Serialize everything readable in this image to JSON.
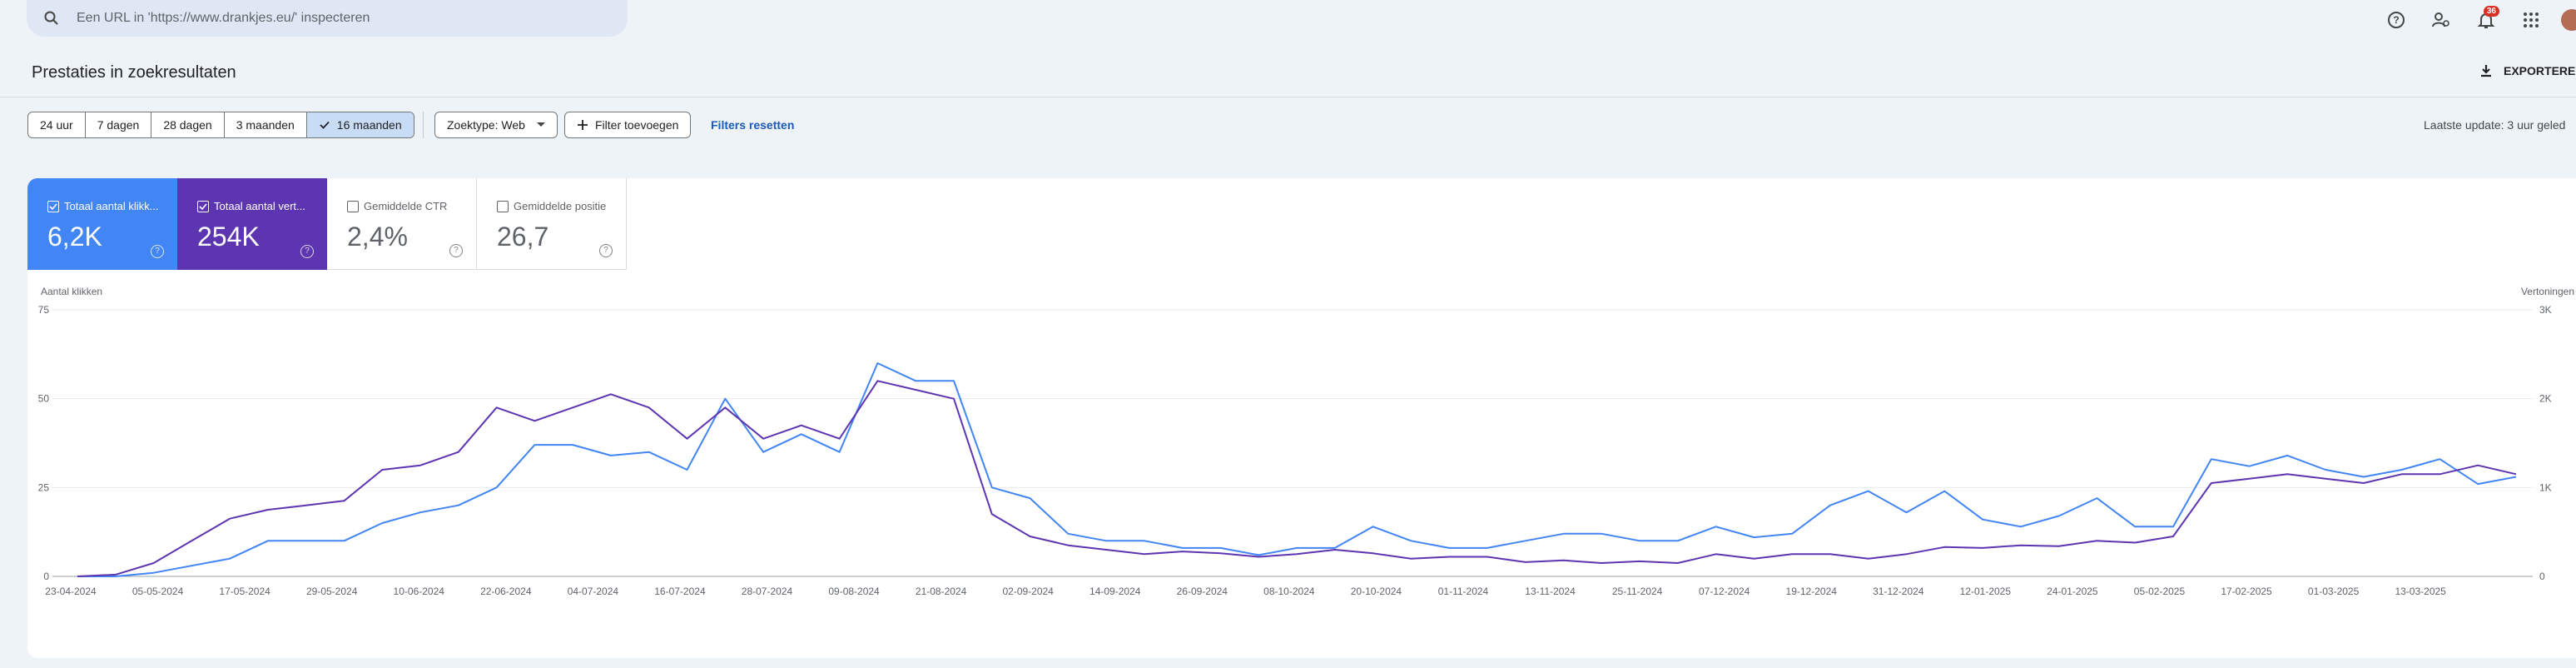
{
  "search": {
    "placeholder": "Een URL in 'https://www.drankjes.eu/' inspecteren"
  },
  "topbar": {
    "notifications_count": "36"
  },
  "page": {
    "title": "Prestaties in zoekresultaten",
    "export_label": "EXPORTEREN"
  },
  "filters": {
    "ranges": [
      "24 uur",
      "7 dagen",
      "28 dagen",
      "3 maanden",
      "16 maanden"
    ],
    "active_range": "16 maanden",
    "search_type": "Zoektype: Web",
    "add_filter": "Filter toevoegen",
    "reset": "Filters resetten",
    "last_update": "Laatste update: 3 uur geled"
  },
  "metrics": {
    "clicks": {
      "label": "Totaal aantal klikk...",
      "value": "6,2K"
    },
    "impressions": {
      "label": "Totaal aantal vert...",
      "value": "254K"
    },
    "ctr": {
      "label": "Gemiddelde CTR",
      "value": "2,4%"
    },
    "position": {
      "label": "Gemiddelde positie",
      "value": "26,7"
    }
  },
  "colors": {
    "clicks": "#4285f4",
    "impressions": "#5e35b1",
    "accent": "#1a5bbd"
  },
  "chart_data": {
    "type": "line",
    "ylabel": "Aantal klikken",
    "y2label": "Vertoningen",
    "ylim": [
      0,
      75
    ],
    "y2lim": [
      0,
      3000
    ],
    "yticks": [
      "0",
      "25",
      "50",
      "75"
    ],
    "y2ticks": [
      "0",
      "1K",
      "2K",
      "3K"
    ],
    "grid": true,
    "xticks": [
      "23-04-2024",
      "05-05-2024",
      "17-05-2024",
      "29-05-2024",
      "10-06-2024",
      "22-06-2024",
      "04-07-2024",
      "16-07-2024",
      "28-07-2024",
      "09-08-2024",
      "21-08-2024",
      "02-09-2024",
      "14-09-2024",
      "26-09-2024",
      "08-10-2024",
      "20-10-2024",
      "01-11-2024",
      "13-11-2024",
      "25-11-2024",
      "07-12-2024",
      "19-12-2024",
      "31-12-2024",
      "12-01-2025",
      "24-01-2025",
      "05-02-2025",
      "17-02-2025",
      "01-03-2025",
      "13-03-2025"
    ],
    "series": [
      {
        "name": "Totaal aantal klikken",
        "axis": "left",
        "color": "#4285f4",
        "points": [
          [
            0,
            0
          ],
          [
            1,
            0
          ],
          [
            2,
            1
          ],
          [
            3,
            3
          ],
          [
            4,
            5
          ],
          [
            5,
            10
          ],
          [
            6,
            10
          ],
          [
            7,
            10
          ],
          [
            8,
            15
          ],
          [
            9,
            18
          ],
          [
            10,
            20
          ],
          [
            11,
            25
          ],
          [
            12,
            37
          ],
          [
            13,
            37
          ],
          [
            14,
            34
          ],
          [
            15,
            35
          ],
          [
            16,
            30
          ],
          [
            17,
            50
          ],
          [
            18,
            35
          ],
          [
            19,
            40
          ],
          [
            20,
            35
          ],
          [
            21,
            60
          ],
          [
            22,
            55
          ],
          [
            23,
            55
          ],
          [
            24,
            25
          ],
          [
            25,
            22
          ],
          [
            26,
            12
          ],
          [
            27,
            10
          ],
          [
            28,
            10
          ],
          [
            29,
            8
          ],
          [
            30,
            8
          ],
          [
            31,
            6
          ],
          [
            32,
            8
          ],
          [
            33,
            8
          ],
          [
            34,
            14
          ],
          [
            35,
            10
          ],
          [
            36,
            8
          ],
          [
            37,
            8
          ],
          [
            38,
            10
          ],
          [
            39,
            12
          ],
          [
            40,
            12
          ],
          [
            41,
            10
          ],
          [
            42,
            10
          ],
          [
            43,
            14
          ],
          [
            44,
            11
          ],
          [
            45,
            12
          ],
          [
            46,
            20
          ],
          [
            47,
            24
          ],
          [
            48,
            18
          ],
          [
            49,
            24
          ],
          [
            50,
            16
          ],
          [
            51,
            14
          ],
          [
            52,
            17
          ],
          [
            53,
            22
          ],
          [
            54,
            14
          ],
          [
            55,
            14
          ],
          [
            56,
            33
          ],
          [
            57,
            31
          ],
          [
            58,
            34
          ],
          [
            59,
            30
          ],
          [
            60,
            28
          ],
          [
            61,
            30
          ],
          [
            62,
            33
          ],
          [
            63,
            26
          ],
          [
            64,
            28
          ]
        ]
      },
      {
        "name": "Totaal aantal vertoningen",
        "axis": "right",
        "color": "#5e35b1",
        "points": [
          [
            0,
            0
          ],
          [
            1,
            20
          ],
          [
            2,
            150
          ],
          [
            3,
            400
          ],
          [
            4,
            650
          ],
          [
            5,
            750
          ],
          [
            6,
            800
          ],
          [
            7,
            850
          ],
          [
            8,
            1200
          ],
          [
            9,
            1250
          ],
          [
            10,
            1400
          ],
          [
            11,
            1900
          ],
          [
            12,
            1750
          ],
          [
            13,
            1900
          ],
          [
            14,
            2050
          ],
          [
            15,
            1900
          ],
          [
            16,
            1550
          ],
          [
            17,
            1900
          ],
          [
            18,
            1550
          ],
          [
            19,
            1700
          ],
          [
            20,
            1550
          ],
          [
            21,
            2200
          ],
          [
            22,
            2100
          ],
          [
            23,
            2000
          ],
          [
            24,
            700
          ],
          [
            25,
            450
          ],
          [
            26,
            350
          ],
          [
            27,
            300
          ],
          [
            28,
            250
          ],
          [
            29,
            280
          ],
          [
            30,
            260
          ],
          [
            31,
            220
          ],
          [
            32,
            250
          ],
          [
            33,
            300
          ],
          [
            34,
            260
          ],
          [
            35,
            200
          ],
          [
            36,
            220
          ],
          [
            37,
            220
          ],
          [
            38,
            160
          ],
          [
            39,
            180
          ],
          [
            40,
            150
          ],
          [
            41,
            170
          ],
          [
            42,
            150
          ],
          [
            43,
            250
          ],
          [
            44,
            200
          ],
          [
            45,
            250
          ],
          [
            46,
            250
          ],
          [
            47,
            200
          ],
          [
            48,
            250
          ],
          [
            49,
            330
          ],
          [
            50,
            320
          ],
          [
            51,
            350
          ],
          [
            52,
            340
          ],
          [
            53,
            400
          ],
          [
            54,
            380
          ],
          [
            55,
            450
          ],
          [
            56,
            1050
          ],
          [
            57,
            1100
          ],
          [
            58,
            1150
          ],
          [
            59,
            1100
          ],
          [
            60,
            1050
          ],
          [
            61,
            1150
          ],
          [
            62,
            1150
          ],
          [
            63,
            1250
          ],
          [
            64,
            1150
          ]
        ]
      }
    ]
  }
}
